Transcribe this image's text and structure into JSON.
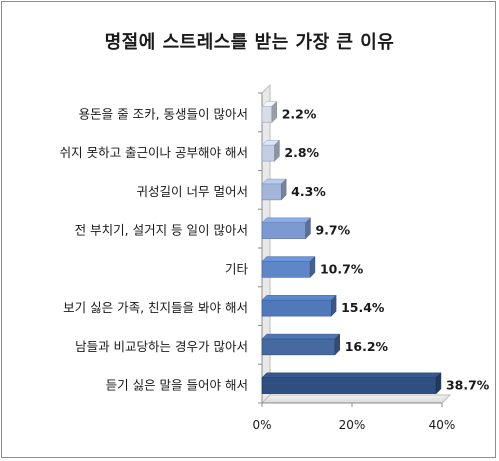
{
  "chart_data": {
    "type": "bar",
    "orientation": "horizontal",
    "title": "명절에 스트레스를 받는 가장 큰 이유",
    "categories": [
      "용돈을 줄 조카, 동생들이 많아서",
      "쉬지 못하고 출근이나 공부해야 해서",
      "귀성길이 너무 멀어서",
      "전 부치기, 설거지 등 일이 많아서",
      "기타",
      "보기 싫은 가족, 친지들을 봐야 해서",
      "남들과 비교당하는 경우가 많아서",
      "듣기 싫은 말을 들어야 해서"
    ],
    "values": [
      2.2,
      2.8,
      4.3,
      9.7,
      10.7,
      15.4,
      16.2,
      38.7
    ],
    "value_labels": [
      "2.2%",
      "2.8%",
      "4.3%",
      "9.7%",
      "10.7%",
      "15.4%",
      "16.2%",
      "38.7%"
    ],
    "x_ticks": [
      "0%",
      "20%",
      "40%"
    ],
    "xlim": [
      0,
      40
    ],
    "grid": false,
    "legend": "none",
    "colors": [
      "#d6dcea",
      "#c3cde4",
      "#a3b6d9",
      "#7c9ad0",
      "#5f86c7",
      "#5079bb",
      "#46699f",
      "#2e4f80"
    ]
  }
}
